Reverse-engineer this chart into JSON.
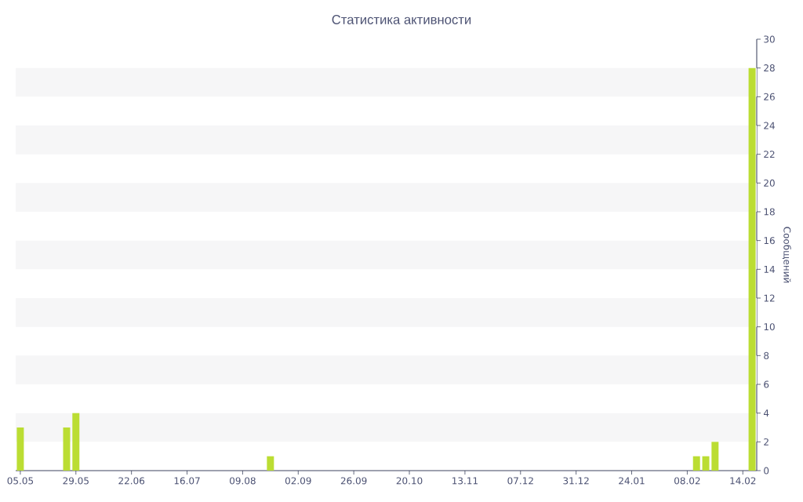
{
  "chart_data": {
    "type": "bar",
    "title": "Статистика активности",
    "ylabel": "Сообщений",
    "categories": [
      "05.05",
      null,
      null,
      null,
      null,
      null,
      "29.05",
      null,
      null,
      null,
      null,
      null,
      "22.06",
      null,
      null,
      null,
      null,
      null,
      "16.07",
      null,
      null,
      null,
      null,
      null,
      "09.08",
      null,
      null,
      null,
      null,
      null,
      "02.09",
      null,
      null,
      null,
      null,
      null,
      "26.09",
      null,
      null,
      null,
      null,
      null,
      "20.10",
      null,
      null,
      null,
      null,
      null,
      "13.11",
      null,
      null,
      null,
      null,
      null,
      "07.12",
      null,
      null,
      null,
      null,
      null,
      "31.12",
      null,
      null,
      null,
      null,
      null,
      "24.01",
      null,
      null,
      null,
      null,
      null,
      "08.02",
      null,
      null,
      null,
      null,
      null,
      "14.02",
      null
    ],
    "values": [
      3,
      null,
      null,
      null,
      null,
      3,
      4,
      null,
      null,
      null,
      null,
      null,
      null,
      null,
      null,
      null,
      null,
      null,
      null,
      null,
      null,
      null,
      null,
      null,
      null,
      null,
      null,
      1,
      null,
      null,
      null,
      null,
      null,
      null,
      null,
      null,
      null,
      null,
      null,
      null,
      null,
      null,
      null,
      null,
      null,
      null,
      null,
      null,
      null,
      null,
      null,
      null,
      null,
      null,
      null,
      null,
      null,
      null,
      null,
      null,
      null,
      null,
      null,
      null,
      null,
      null,
      null,
      null,
      null,
      null,
      null,
      null,
      null,
      1,
      1,
      2,
      null,
      null,
      null,
      28
    ],
    "color": "#bbdd33",
    "ylim": [
      0,
      30
    ],
    "yticks": [
      0,
      2,
      4,
      6,
      8,
      10,
      12,
      14,
      16,
      18,
      20,
      22,
      24,
      26,
      28,
      30
    ],
    "bands": [
      {
        "axis": "y",
        "from": 2,
        "to": 4,
        "color": "#f6f6f7"
      },
      {
        "axis": "y",
        "from": 6,
        "to": 8,
        "color": "#f6f6f7"
      },
      {
        "axis": "y",
        "from": 10,
        "to": 12,
        "color": "#f6f6f7"
      },
      {
        "axis": "y",
        "from": 14,
        "to": 16,
        "color": "#f6f6f7"
      },
      {
        "axis": "y",
        "from": 18,
        "to": 20,
        "color": "#f6f6f7"
      },
      {
        "axis": "y",
        "from": 22,
        "to": 24,
        "color": "#f6f6f7"
      },
      {
        "axis": "y",
        "from": 26,
        "to": 28,
        "color": "#f6f6f7"
      }
    ]
  }
}
